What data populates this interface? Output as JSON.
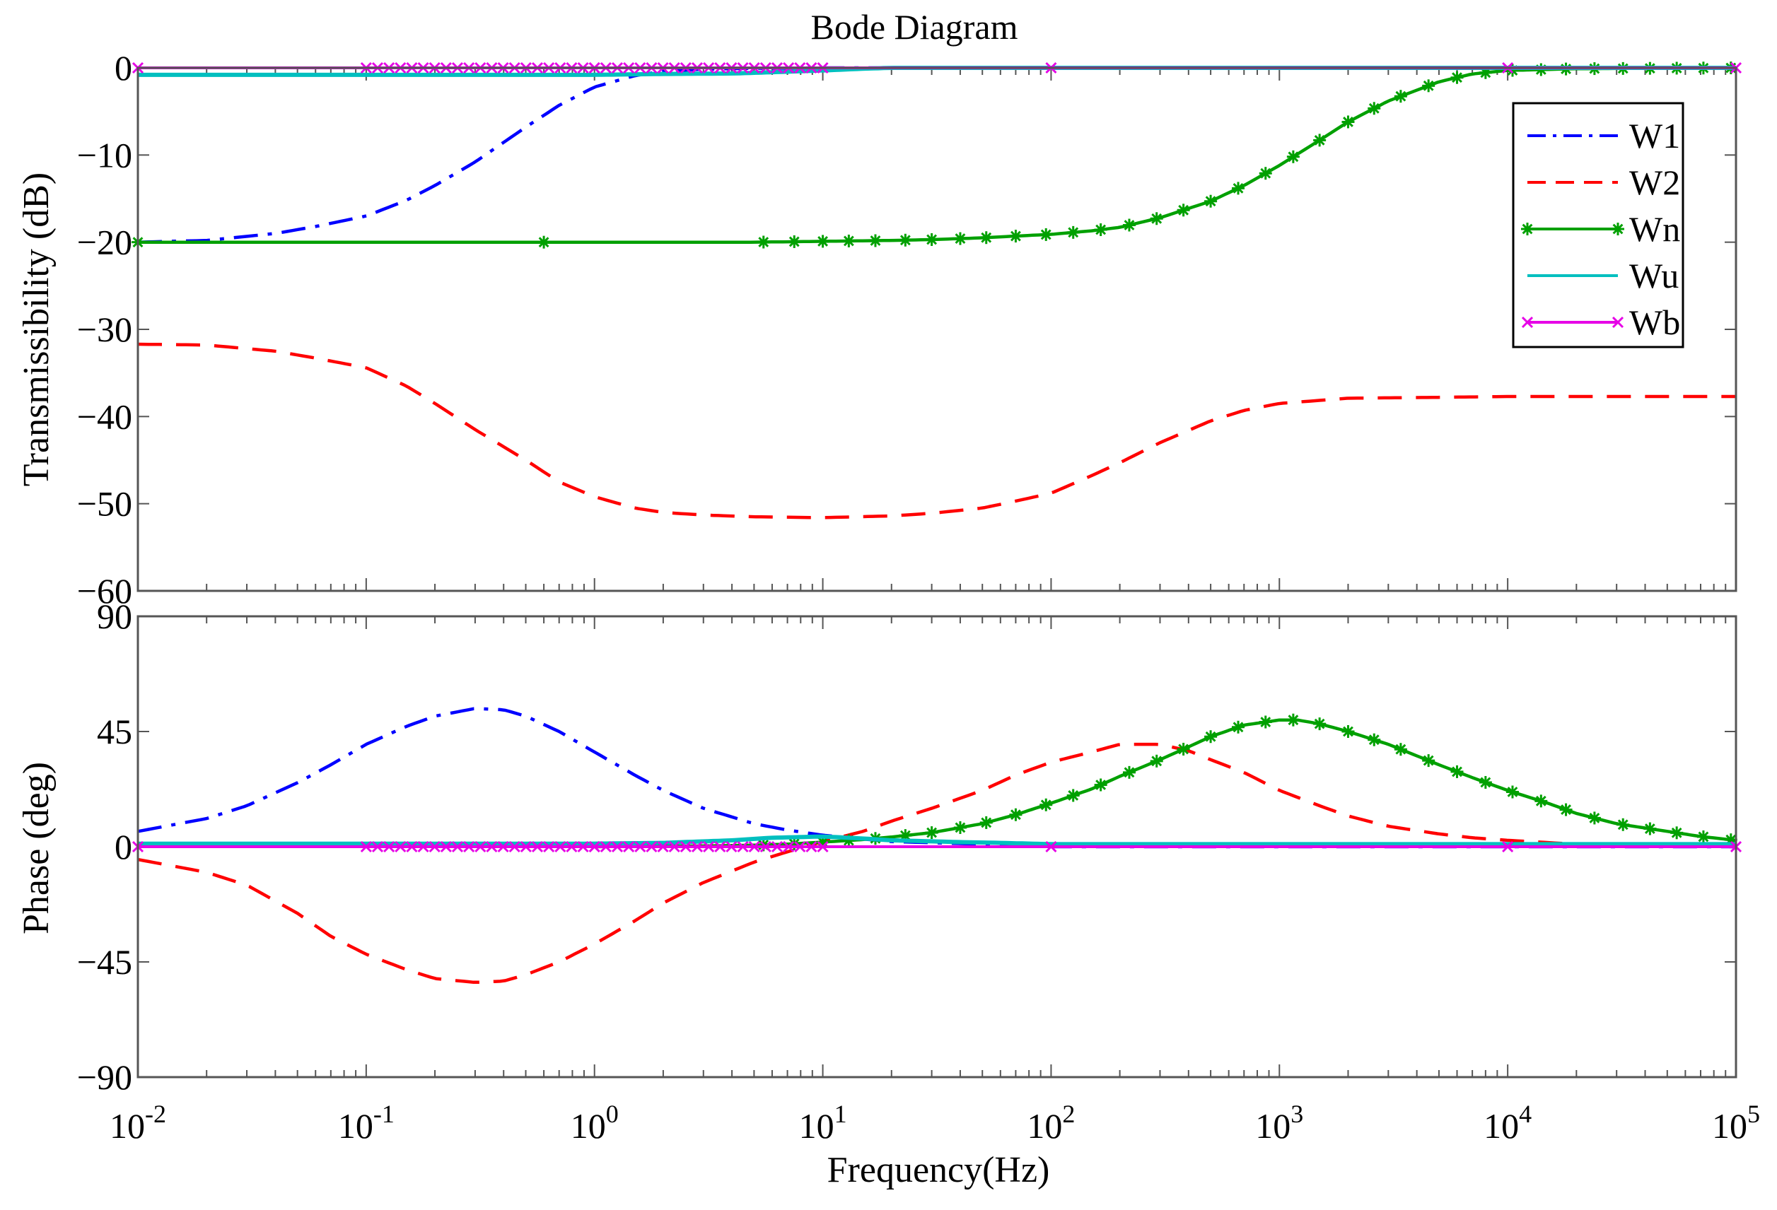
{
  "chart_data": {
    "type": "line",
    "title": "Bode Diagram",
    "xlabel": "Frequency(Hz)",
    "x_scale": "log",
    "xlim": [
      0.01,
      100000
    ],
    "x_tick_labels": [
      {
        "base": "10",
        "exp": "-2"
      },
      {
        "base": "10",
        "exp": "-1"
      },
      {
        "base": "10",
        "exp": "0"
      },
      {
        "base": "10",
        "exp": "1"
      },
      {
        "base": "10",
        "exp": "2"
      },
      {
        "base": "10",
        "exp": "3"
      },
      {
        "base": "10",
        "exp": "4"
      },
      {
        "base": "10",
        "exp": "5"
      }
    ],
    "legend": {
      "placement": "top-right",
      "entries": [
        "W1",
        "W2",
        "Wn",
        "Wu",
        "Wb"
      ]
    },
    "series_styles": {
      "W1": {
        "color": "#0000ff",
        "dash": "dashdot",
        "marker": "none"
      },
      "W2": {
        "color": "#ff0000",
        "dash": "dashed",
        "marker": "none"
      },
      "Wn": {
        "color": "#00a000",
        "dash": "solid",
        "marker": "star"
      },
      "Wu": {
        "color": "#00bfbf",
        "dash": "solid",
        "marker": "none"
      },
      "Wb": {
        "color": "#e600e6",
        "dash": "solid",
        "marker": "x"
      }
    },
    "magnitude": {
      "ylabel": "Transmissibility (dB)",
      "ylim": [
        -60,
        0
      ],
      "y_ticks": [
        "0",
        "−10",
        "−20",
        "−30",
        "−40",
        "−50",
        "−60"
      ],
      "series": [
        {
          "name": "W1",
          "points": [
            [
              0.01,
              -20
            ],
            [
              0.02,
              -19.8
            ],
            [
              0.04,
              -19
            ],
            [
              0.06,
              -18.2
            ],
            [
              0.1,
              -17
            ],
            [
              0.15,
              -15.2
            ],
            [
              0.2,
              -13.5
            ],
            [
              0.3,
              -10.8
            ],
            [
              0.5,
              -6.8
            ],
            [
              0.7,
              -4.3
            ],
            [
              1,
              -2.2
            ],
            [
              1.5,
              -0.9
            ],
            [
              2,
              -0.4
            ],
            [
              3,
              -0.15
            ],
            [
              5,
              -0.05
            ],
            [
              10,
              0
            ],
            [
              100,
              0
            ],
            [
              100000,
              0
            ]
          ]
        },
        {
          "name": "W2",
          "points": [
            [
              0.01,
              -31.7
            ],
            [
              0.02,
              -31.8
            ],
            [
              0.04,
              -32.5
            ],
            [
              0.06,
              -33.3
            ],
            [
              0.1,
              -34.4
            ],
            [
              0.15,
              -36.5
            ],
            [
              0.2,
              -38.5
            ],
            [
              0.3,
              -41.5
            ],
            [
              0.5,
              -45
            ],
            [
              0.7,
              -47.5
            ],
            [
              1,
              -49.2
            ],
            [
              1.5,
              -50.5
            ],
            [
              2,
              -51
            ],
            [
              3,
              -51.3
            ],
            [
              5,
              -51.5
            ],
            [
              10,
              -51.6
            ],
            [
              20,
              -51.4
            ],
            [
              30,
              -51.1
            ],
            [
              50,
              -50.5
            ],
            [
              70,
              -49.7
            ],
            [
              100,
              -48.8
            ],
            [
              150,
              -46.8
            ],
            [
              200,
              -45.3
            ],
            [
              300,
              -43
            ],
            [
              500,
              -40.5
            ],
            [
              700,
              -39.3
            ],
            [
              1000,
              -38.5
            ],
            [
              2000,
              -37.9
            ],
            [
              5000,
              -37.8
            ],
            [
              10000,
              -37.7
            ],
            [
              100000,
              -37.7
            ]
          ]
        },
        {
          "name": "Wn",
          "points": [
            [
              0.01,
              -20
            ],
            [
              0.1,
              -20
            ],
            [
              1,
              -20
            ],
            [
              5,
              -20
            ],
            [
              10,
              -19.9
            ],
            [
              20,
              -19.8
            ],
            [
              30,
              -19.7
            ],
            [
              50,
              -19.5
            ],
            [
              70,
              -19.3
            ],
            [
              100,
              -19.1
            ],
            [
              150,
              -18.7
            ],
            [
              200,
              -18.3
            ],
            [
              300,
              -17.2
            ],
            [
              500,
              -15.3
            ],
            [
              700,
              -13.5
            ],
            [
              1000,
              -11.2
            ],
            [
              1500,
              -8.3
            ],
            [
              2000,
              -6.2
            ],
            [
              3000,
              -3.8
            ],
            [
              5000,
              -1.6
            ],
            [
              7000,
              -0.7
            ],
            [
              10000,
              -0.3
            ],
            [
              20000,
              -0.1
            ],
            [
              100000,
              0
            ]
          ]
        },
        {
          "name": "Wu",
          "points": [
            [
              0.01,
              -0.8
            ],
            [
              0.1,
              -0.8
            ],
            [
              1,
              -0.8
            ],
            [
              2,
              -0.7
            ],
            [
              4,
              -0.65
            ],
            [
              6,
              -0.5
            ],
            [
              10,
              -0.3
            ],
            [
              15,
              -0.1
            ],
            [
              20,
              0
            ],
            [
              100,
              0
            ],
            [
              100000,
              0
            ]
          ]
        },
        {
          "name": "Wb",
          "points": [
            [
              0.01,
              0
            ],
            [
              100000,
              0
            ]
          ]
        }
      ]
    },
    "phase": {
      "ylabel": "Phase (deg)",
      "ylim": [
        -90,
        90
      ],
      "y_ticks": [
        "90",
        "45",
        "0",
        "−45",
        "−90"
      ],
      "series": [
        {
          "name": "W1",
          "points": [
            [
              0.01,
              6
            ],
            [
              0.02,
              11
            ],
            [
              0.03,
              16
            ],
            [
              0.05,
              25
            ],
            [
              0.07,
              32
            ],
            [
              0.1,
              40
            ],
            [
              0.15,
              47
            ],
            [
              0.2,
              51
            ],
            [
              0.3,
              54
            ],
            [
              0.4,
              53.5
            ],
            [
              0.5,
              51
            ],
            [
              0.7,
              45
            ],
            [
              1,
              37
            ],
            [
              1.5,
              28
            ],
            [
              2,
              22
            ],
            [
              3,
              15
            ],
            [
              5,
              9
            ],
            [
              7,
              6.5
            ],
            [
              10,
              4.5
            ],
            [
              15,
              3
            ],
            [
              20,
              2
            ],
            [
              50,
              1
            ],
            [
              100,
              0
            ],
            [
              100000,
              0
            ]
          ]
        },
        {
          "name": "W2",
          "points": [
            [
              0.01,
              -5
            ],
            [
              0.02,
              -10
            ],
            [
              0.03,
              -15
            ],
            [
              0.05,
              -26
            ],
            [
              0.07,
              -35
            ],
            [
              0.1,
              -42
            ],
            [
              0.15,
              -48
            ],
            [
              0.2,
              -51.5
            ],
            [
              0.3,
              -53
            ],
            [
              0.4,
              -52.5
            ],
            [
              0.5,
              -50
            ],
            [
              0.7,
              -45
            ],
            [
              1,
              -38
            ],
            [
              1.5,
              -29
            ],
            [
              2,
              -22
            ],
            [
              3,
              -14
            ],
            [
              5,
              -6
            ],
            [
              7,
              -2
            ],
            [
              10,
              2
            ],
            [
              15,
              6
            ],
            [
              20,
              10
            ],
            [
              30,
              15
            ],
            [
              50,
              22
            ],
            [
              70,
              28
            ],
            [
              100,
              33
            ],
            [
              150,
              37
            ],
            [
              200,
              40
            ],
            [
              300,
              40
            ],
            [
              400,
              37.5
            ],
            [
              500,
              34
            ],
            [
              700,
              29
            ],
            [
              1000,
              22
            ],
            [
              1500,
              16
            ],
            [
              2000,
              12
            ],
            [
              3000,
              8
            ],
            [
              5000,
              5
            ],
            [
              7000,
              3.5
            ],
            [
              10000,
              2.5
            ],
            [
              20000,
              1
            ],
            [
              100000,
              0
            ]
          ]
        },
        {
          "name": "Wn",
          "points": [
            [
              1,
              0
            ],
            [
              3,
              0.3
            ],
            [
              5,
              0.6
            ],
            [
              7,
              1
            ],
            [
              10,
              1.8
            ],
            [
              15,
              2.8
            ],
            [
              20,
              3.8
            ],
            [
              30,
              5.5
            ],
            [
              50,
              9
            ],
            [
              70,
              12.5
            ],
            [
              100,
              17
            ],
            [
              150,
              22.5
            ],
            [
              200,
              27.5
            ],
            [
              300,
              34
            ],
            [
              400,
              39
            ],
            [
              500,
              43
            ],
            [
              700,
              47.5
            ],
            [
              1000,
              49.5
            ],
            [
              1200,
              49.5
            ],
            [
              1500,
              48
            ],
            [
              2000,
              45
            ],
            [
              3000,
              40
            ],
            [
              5000,
              32
            ],
            [
              7000,
              27
            ],
            [
              10000,
              22
            ],
            [
              15000,
              17
            ],
            [
              20000,
              13
            ],
            [
              30000,
              9
            ],
            [
              50000,
              6
            ],
            [
              70000,
              4
            ],
            [
              100000,
              2.5
            ]
          ]
        },
        {
          "name": "Wu",
          "points": [
            [
              0.01,
              1.2
            ],
            [
              1,
              1.2
            ],
            [
              2,
              1.5
            ],
            [
              4,
              2.5
            ],
            [
              6,
              3.5
            ],
            [
              10,
              4
            ],
            [
              15,
              3.2
            ],
            [
              20,
              2.5
            ],
            [
              40,
              1.8
            ],
            [
              60,
              1.5
            ],
            [
              100,
              1
            ],
            [
              1000,
              1
            ],
            [
              100000,
              1
            ]
          ]
        },
        {
          "name": "Wb",
          "points": [
            [
              0.01,
              0
            ],
            [
              100000,
              0
            ]
          ]
        }
      ]
    }
  }
}
